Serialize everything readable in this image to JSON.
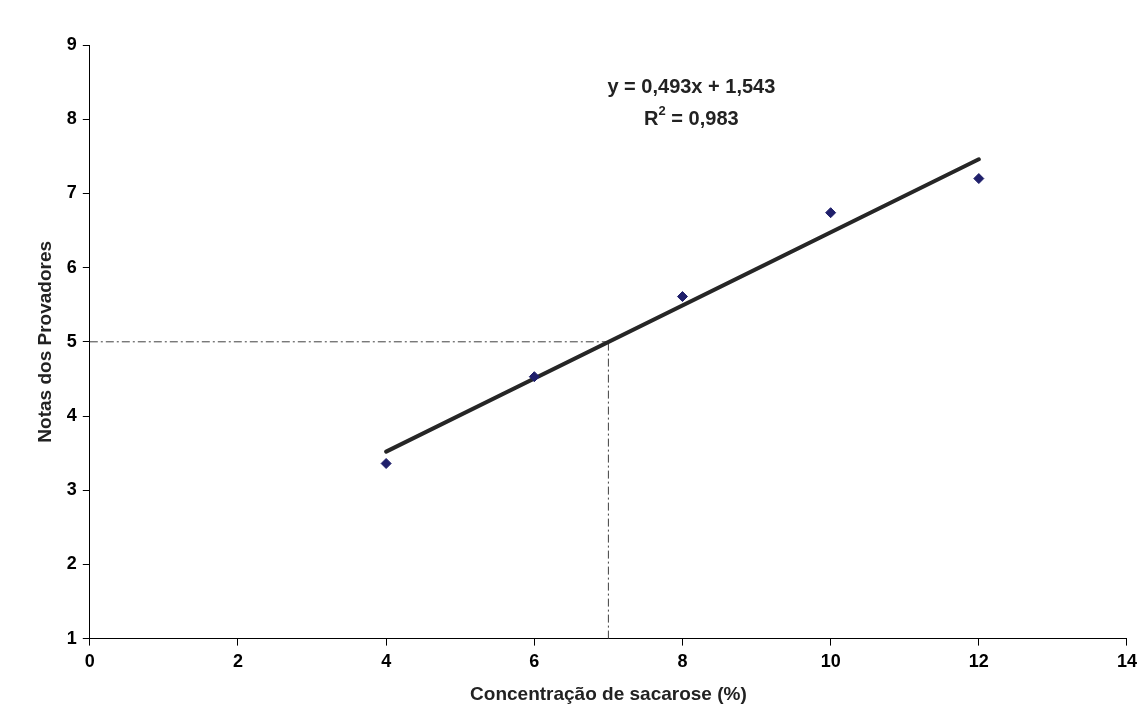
{
  "chart_data": {
    "type": "scatter",
    "xlabel": "Concentração de sacarose (%)",
    "ylabel": "Notas dos Provadores",
    "annotations": [
      "y = 0,493x + 1,543",
      "R$^{2}$ = 0,983"
    ],
    "xlim": [
      0,
      14
    ],
    "xticks": [
      0,
      2,
      4,
      6,
      8,
      10,
      12,
      14
    ],
    "ylim": [
      1,
      9
    ],
    "yticks": [
      1,
      2,
      3,
      4,
      5,
      6,
      7,
      8,
      9
    ],
    "grid": false,
    "legend": false,
    "marker": "diamond",
    "series": [
      {
        "type": "scatter",
        "color": "#1f1f6b",
        "x": [
          4,
          6,
          8,
          10,
          12
        ],
        "values": [
          3.36,
          4.53,
          5.61,
          6.74,
          7.2
        ]
      },
      {
        "type": "line",
        "color": "#262626",
        "x": [
          4,
          12
        ],
        "values": [
          3.52,
          7.46
        ],
        "marker": "none"
      }
    ],
    "ref_lines": [
      {
        "axis": "y",
        "value": 5,
        "line_style": "dashed",
        "color": "#404040"
      },
      {
        "axis": "x",
        "value": 7,
        "line_style": "dashed",
        "color": "#404040"
      }
    ]
  }
}
